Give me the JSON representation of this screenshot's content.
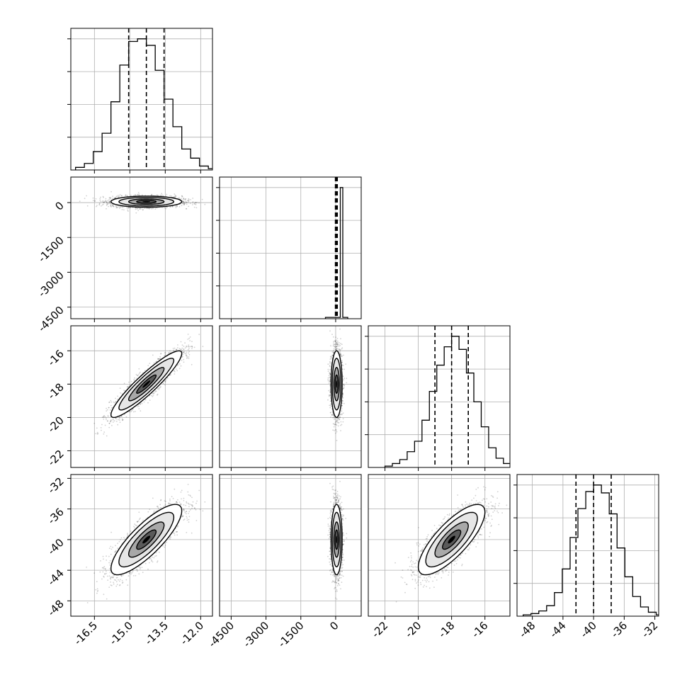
{
  "chart_data": {
    "type": "corner",
    "parameters": [
      {
        "range": [
          -17.5,
          -11.5
        ],
        "ticks": [
          "-16.5",
          "-15.0",
          "-13.5",
          "-12.0"
        ],
        "tick_values": [
          -16.5,
          -15.0,
          -13.5,
          -12.0
        ],
        "mean": -14.3,
        "std": 0.75,
        "quantiles": [
          -15.05,
          -14.3,
          -13.55
        ],
        "hist_counts": [
          2,
          5,
          14,
          28,
          52,
          80,
          98,
          100,
          95,
          76,
          54,
          33,
          16,
          9,
          3,
          1
        ],
        "hist_ymax": 108
      },
      {
        "range": [
          -5000,
          1100
        ],
        "ticks": [
          "0",
          "-1500",
          "-3000",
          "-4500"
        ],
        "tick_values": [
          0,
          -1500,
          -3000,
          -4500
        ],
        "mean": 40,
        "std": 120,
        "quantiles": [
          -10,
          30,
          70
        ],
        "hist_counts": [
          1,
          1,
          1,
          1,
          1,
          1,
          100,
          1,
          1
        ],
        "hist_ymax": 108
      },
      {
        "range": [
          -23.0,
          -14.5
        ],
        "ticks": [
          "-22",
          "-20",
          "-18",
          "-16"
        ],
        "tick_values": [
          -22,
          -20,
          -18,
          -16
        ],
        "mean": -18.0,
        "std": 1.0,
        "quantiles": [
          -19.0,
          -18.0,
          -17.0
        ],
        "hist_counts": [
          1,
          3,
          6,
          12,
          20,
          36,
          58,
          78,
          92,
          100,
          90,
          72,
          50,
          31,
          15,
          7,
          3,
          1
        ],
        "hist_ymax": 108
      },
      {
        "range": [
          -50,
          -31.5
        ],
        "ticks": [
          "-48",
          "-44",
          "-40",
          "-36",
          "-32"
        ],
        "tick_values": [
          -48,
          -44,
          -40,
          -36,
          -32
        ],
        "mean": -40,
        "std": 2.3,
        "quantiles": [
          -42.3,
          -40.0,
          -37.7
        ],
        "hist_counts": [
          1,
          2,
          4,
          8,
          18,
          36,
          60,
          82,
          95,
          100,
          94,
          78,
          52,
          30,
          15,
          7,
          3,
          1
        ],
        "hist_ymax": 108
      }
    ],
    "correlations": [
      [
        1,
        0,
        0.92,
        0.82
      ],
      [
        0,
        1,
        0,
        0
      ],
      [
        0.92,
        0,
        1,
        0.78
      ],
      [
        0.82,
        0,
        0.78,
        1
      ]
    ],
    "grid": true
  }
}
